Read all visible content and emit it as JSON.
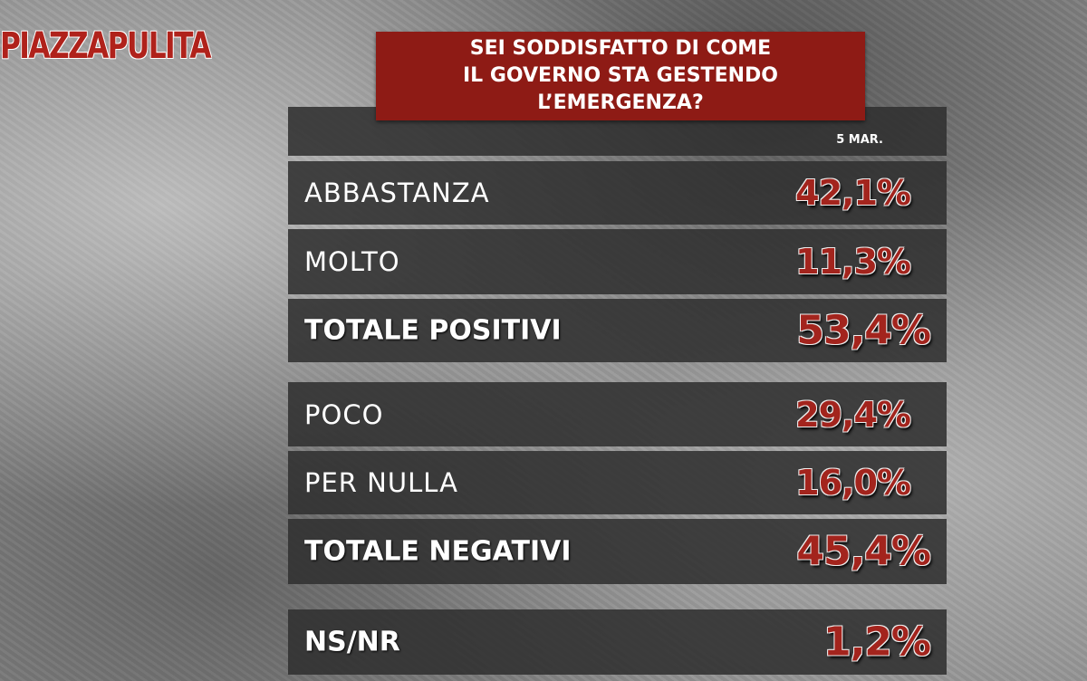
{
  "logo": "PIAZZAPULITA",
  "title": {
    "lines": [
      "SEI SODDISFATTO DI COME",
      "IL GOVERNO STA GESTENDO",
      "L’EMERGENZA?"
    ]
  },
  "table": {
    "column": "5 MAR.",
    "rows": [
      {
        "label": "ABBASTANZA",
        "value": "42,1%"
      },
      {
        "label": "MOLTO",
        "value": "11,3%"
      },
      {
        "label": "TOTALE POSITIVI",
        "value": "53,4%"
      },
      {
        "label": "POCO",
        "value": "29,4%"
      },
      {
        "label": "PER NULLA",
        "value": "16,0%"
      },
      {
        "label": "TOTALE NEGATIVI",
        "value": "45,4%"
      },
      {
        "label": "NS/NR",
        "value": "1,2%"
      }
    ]
  }
}
